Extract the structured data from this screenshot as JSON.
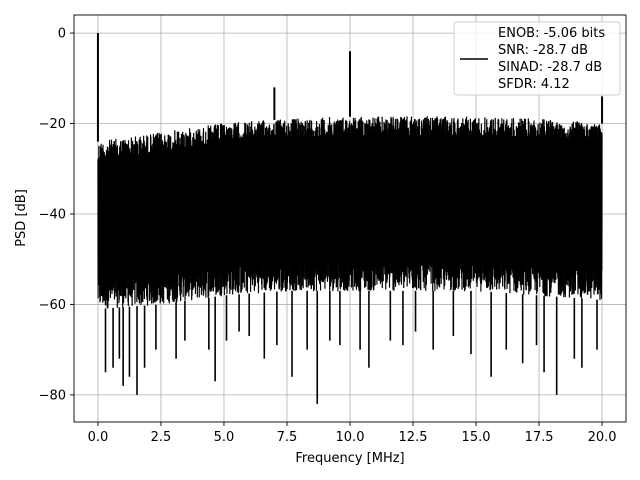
{
  "chart_data": {
    "type": "line",
    "xlabel": "Frequency [MHz]",
    "ylabel": "PSD [dB]",
    "xlim": [
      -0.95,
      20.95
    ],
    "ylim": [
      -86,
      4
    ],
    "xticks": [
      0.0,
      2.5,
      5.0,
      7.5,
      10.0,
      12.5,
      15.0,
      17.5,
      20.0
    ],
    "xtick_labels": [
      "0.0",
      "2.5",
      "5.0",
      "7.5",
      "10.0",
      "12.5",
      "15.0",
      "17.5",
      "20.0"
    ],
    "yticks": [
      0,
      -20,
      -40,
      -60,
      -80
    ],
    "ytick_labels": [
      "0",
      "−20",
      "−40",
      "−60",
      "−80"
    ],
    "grid": true,
    "legend_position": "top-right",
    "legend_lines": [
      "ENOB: -5.06 bits",
      "SNR: -28.7 dB",
      "SINAD: -28.7 dB",
      "SFDR: 4.12"
    ],
    "series": [
      {
        "color": "#000000",
        "envelope": {
          "x": [
            0.0,
            2.5,
            5.0,
            7.5,
            10.0,
            12.5,
            15.0,
            17.5,
            20.0
          ],
          "upper": [
            -24,
            -22,
            -20,
            -19,
            -18.5,
            -18.5,
            -18.5,
            -19,
            -20
          ],
          "lower": [
            -61,
            -60,
            -58,
            -57,
            -57,
            -57,
            -57,
            -58,
            -59
          ]
        },
        "spikes": [
          {
            "x": 0.0,
            "y": 0
          },
          {
            "x": 7.0,
            "y": -12
          },
          {
            "x": 10.0,
            "y": -4
          },
          {
            "x": 20.0,
            "y": -14
          }
        ],
        "dips": [
          {
            "x": 0.3,
            "y": -75
          },
          {
            "x": 0.6,
            "y": -74
          },
          {
            "x": 0.85,
            "y": -72
          },
          {
            "x": 1.0,
            "y": -78
          },
          {
            "x": 1.25,
            "y": -76
          },
          {
            "x": 1.55,
            "y": -80
          },
          {
            "x": 1.85,
            "y": -74
          },
          {
            "x": 2.3,
            "y": -70
          },
          {
            "x": 3.1,
            "y": -72
          },
          {
            "x": 3.45,
            "y": -68
          },
          {
            "x": 4.4,
            "y": -70
          },
          {
            "x": 4.65,
            "y": -77
          },
          {
            "x": 5.1,
            "y": -68
          },
          {
            "x": 5.6,
            "y": -66
          },
          {
            "x": 6.0,
            "y": -67
          },
          {
            "x": 6.6,
            "y": -72
          },
          {
            "x": 7.1,
            "y": -69
          },
          {
            "x": 7.7,
            "y": -76
          },
          {
            "x": 8.3,
            "y": -70
          },
          {
            "x": 8.7,
            "y": -82
          },
          {
            "x": 9.2,
            "y": -68
          },
          {
            "x": 9.6,
            "y": -69
          },
          {
            "x": 10.4,
            "y": -70
          },
          {
            "x": 10.75,
            "y": -74
          },
          {
            "x": 11.6,
            "y": -68
          },
          {
            "x": 12.1,
            "y": -69
          },
          {
            "x": 12.6,
            "y": -66
          },
          {
            "x": 13.3,
            "y": -70
          },
          {
            "x": 14.1,
            "y": -67
          },
          {
            "x": 14.8,
            "y": -71
          },
          {
            "x": 15.6,
            "y": -76
          },
          {
            "x": 16.2,
            "y": -70
          },
          {
            "x": 16.85,
            "y": -73
          },
          {
            "x": 17.4,
            "y": -69
          },
          {
            "x": 17.7,
            "y": -75
          },
          {
            "x": 18.2,
            "y": -80
          },
          {
            "x": 18.9,
            "y": -72
          },
          {
            "x": 19.2,
            "y": -74
          },
          {
            "x": 19.8,
            "y": -70
          }
        ]
      }
    ]
  }
}
